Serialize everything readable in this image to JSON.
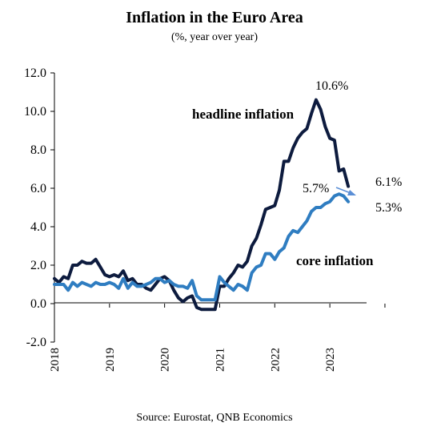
{
  "chart_data": {
    "type": "line",
    "title": "Inflation in the Euro Area",
    "subtitle": "(%, year over year)",
    "source": "Source: Eurostat, QNB Economics",
    "ylim": [
      -2,
      12
    ],
    "yticks": [
      "12.0",
      "10.0",
      "8.0",
      "6.0",
      "4.0",
      "2.0",
      "0.0",
      "-2.0"
    ],
    "xticks": [
      "2018",
      "2019",
      "2020",
      "2021",
      "2022",
      "2023"
    ],
    "x_start": "2018-01",
    "legend": "direct labels on lines",
    "series": [
      {
        "name": "headline inflation",
        "color": "#0d1b3e",
        "values": [
          1.3,
          1.1,
          1.4,
          1.3,
          2.0,
          2.0,
          2.2,
          2.1,
          2.1,
          2.3,
          1.9,
          1.5,
          1.4,
          1.5,
          1.4,
          1.7,
          1.2,
          1.3,
          1.0,
          1.0,
          0.8,
          0.7,
          1.0,
          1.3,
          1.4,
          1.2,
          0.7,
          0.3,
          0.1,
          0.3,
          0.4,
          -0.2,
          -0.3,
          -0.3,
          -0.3,
          -0.3,
          0.9,
          0.9,
          1.3,
          1.6,
          2.0,
          1.9,
          2.2,
          3.0,
          3.4,
          4.1,
          4.9,
          5.0,
          5.1,
          5.9,
          7.4,
          7.4,
          8.1,
          8.6,
          8.9,
          9.1,
          9.9,
          10.6,
          10.1,
          9.2,
          8.6,
          8.5,
          6.9,
          7.0,
          6.1
        ],
        "end_label": "6.1%",
        "peak_label": "10.6%"
      },
      {
        "name": "core inflation",
        "color": "#2f7dc1",
        "values": [
          1.0,
          1.0,
          1.0,
          0.7,
          1.1,
          0.9,
          1.1,
          1.0,
          0.9,
          1.1,
          1.0,
          1.0,
          1.1,
          1.0,
          0.8,
          1.3,
          0.8,
          1.1,
          0.9,
          0.9,
          1.0,
          1.1,
          1.3,
          1.3,
          1.1,
          1.2,
          1.0,
          0.9,
          0.9,
          0.8,
          1.2,
          0.4,
          0.2,
          0.2,
          0.2,
          0.2,
          1.4,
          1.1,
          0.9,
          0.7,
          1.0,
          0.9,
          0.7,
          1.6,
          1.9,
          2.0,
          2.6,
          2.6,
          2.3,
          2.7,
          2.9,
          3.5,
          3.8,
          3.7,
          4.0,
          4.3,
          4.8,
          5.0,
          5.0,
          5.2,
          5.3,
          5.6,
          5.7,
          5.6,
          5.3
        ],
        "end_label": "5.3%",
        "peak_label": "5.7%"
      }
    ]
  }
}
